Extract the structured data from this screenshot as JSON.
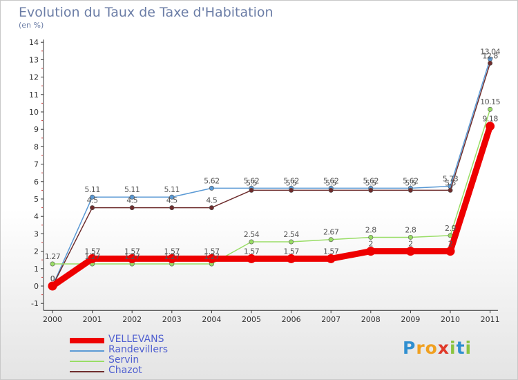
{
  "page": {
    "title": "Evolution du Taux de Taxe d'Habitation",
    "subtitle": "(en %)"
  },
  "chart_data": {
    "type": "line",
    "title": "Evolution du Taux de Taxe d'Habitation",
    "subtitle": "(en %)",
    "xlabel": "",
    "ylabel": "",
    "x": [
      "2000",
      "2001",
      "2002",
      "2003",
      "2004",
      "2005",
      "2006",
      "2007",
      "2008",
      "2009",
      "2010",
      "2011"
    ],
    "ylim": [
      -1,
      14
    ],
    "yticks": [
      -1,
      0,
      1,
      2,
      3,
      4,
      5,
      6,
      7,
      8,
      9,
      10,
      11,
      12,
      13,
      14
    ],
    "grid": false,
    "legend": "bottom-left",
    "series": [
      {
        "name": "VELLEVANS",
        "color": "#ee0000",
        "values": [
          0,
          1.57,
          1.57,
          1.57,
          1.57,
          1.57,
          1.57,
          1.57,
          2,
          2,
          2,
          9.18
        ],
        "labels": [
          "0",
          "1.57",
          "1.57",
          "1.57",
          "1.57",
          "1.57",
          "1.57",
          "1.57",
          "2",
          "2",
          "2",
          "9.18"
        ]
      },
      {
        "name": "Randevillers",
        "color": "#5b9ad5",
        "values": [
          0,
          5.11,
          5.11,
          5.11,
          5.62,
          5.62,
          5.62,
          5.62,
          5.62,
          5.62,
          5.73,
          13.04
        ],
        "labels": [
          "0",
          "5.11",
          "5.11",
          "5.11",
          "5.62",
          "5.62",
          "5.62",
          "5.62",
          "5.62",
          "5.62",
          "5.73",
          "13.04"
        ]
      },
      {
        "name": "Servin",
        "color": "#99dd66",
        "values": [
          1.27,
          1.27,
          1.27,
          1.27,
          1.27,
          2.54,
          2.54,
          2.67,
          2.8,
          2.8,
          2.9,
          10.15
        ],
        "labels": [
          "1.27",
          "1.27",
          "1.27",
          "1.27",
          "1.27",
          "2.54",
          "2.54",
          "2.67",
          "2.8",
          "2.8",
          "2.9",
          "10.15"
        ]
      },
      {
        "name": "Chazot",
        "color": "#6e2d2d",
        "values": [
          0,
          4.5,
          4.5,
          4.5,
          4.5,
          5.5,
          5.5,
          5.5,
          5.5,
          5.5,
          5.5,
          12.8
        ],
        "labels": [
          "0",
          "4.5",
          "4.5",
          "4.5",
          "4.5",
          "5.5",
          "5.5",
          "5.5",
          "5.5",
          "5.5",
          "5.5",
          "12.8"
        ]
      }
    ]
  },
  "legend": {
    "items": [
      "VELLEVANS",
      "Randevillers",
      "Servin",
      "Chazot"
    ]
  },
  "logo": {
    "letters": [
      "P",
      "r",
      "o",
      "x",
      "i",
      "t",
      "i"
    ],
    "colors": [
      "#2f8fd0",
      "#f0a020",
      "#f0a020",
      "#e03a2a",
      "#8ac43f",
      "#2f8fd0",
      "#8ac43f"
    ]
  }
}
